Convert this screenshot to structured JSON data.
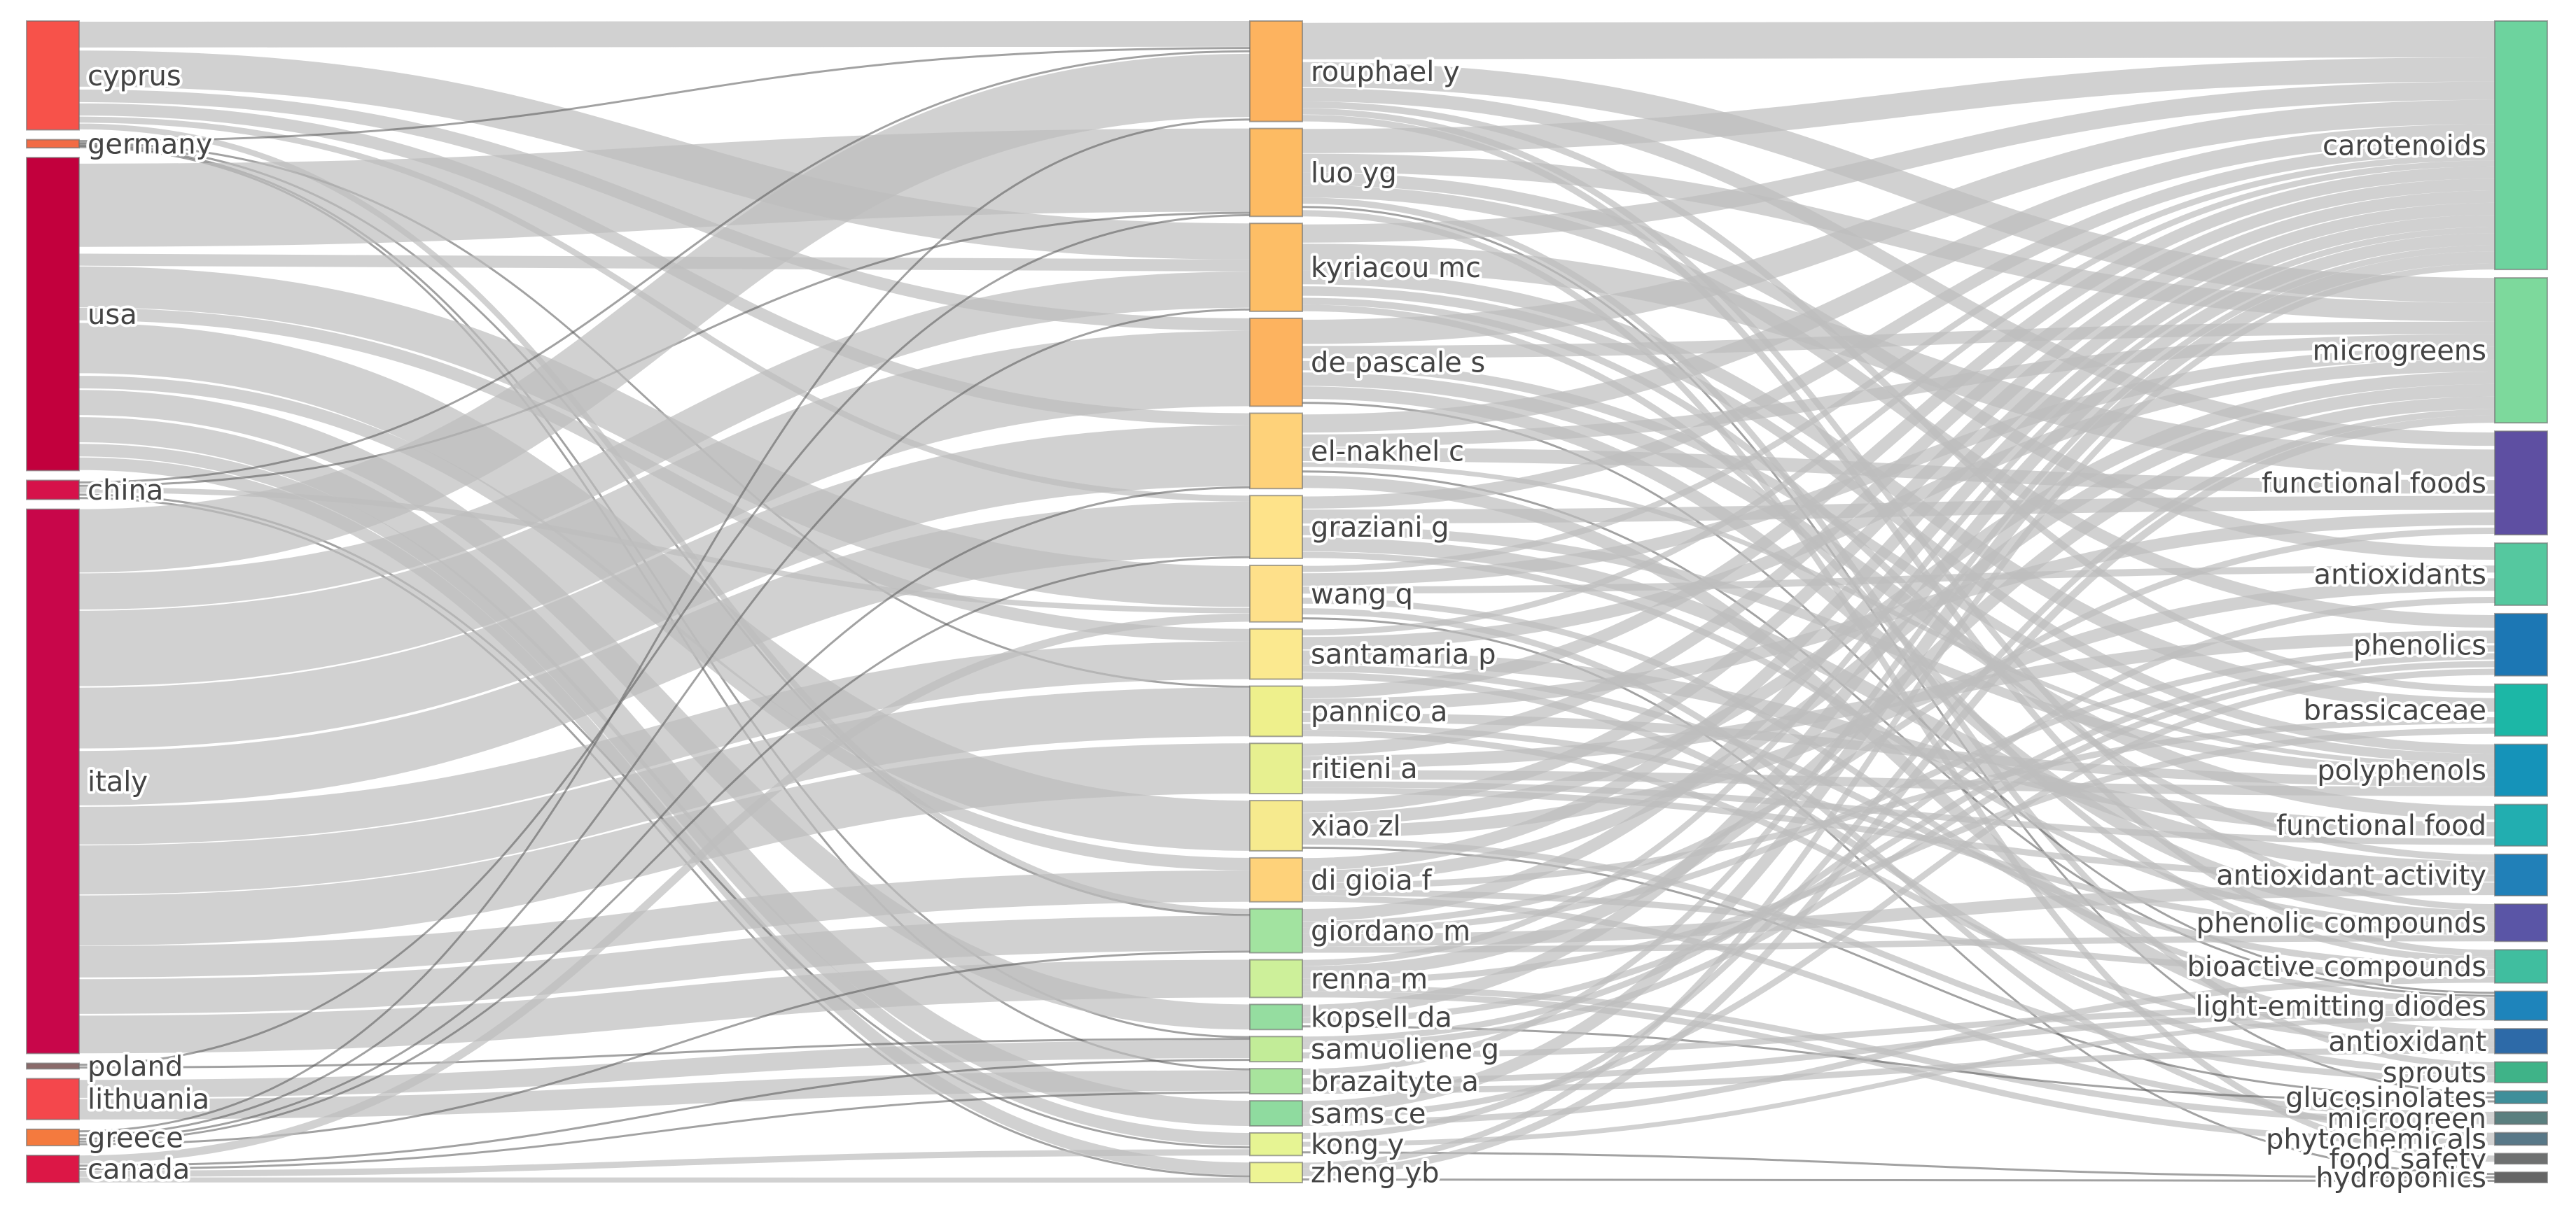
{
  "chart_data": {
    "type": "sankey",
    "columns": [
      {
        "name": "countries",
        "nodes": [
          {
            "id": "cyprus",
            "label": "cyprus",
            "color": "#f7524a",
            "weight": 8
          },
          {
            "id": "germany",
            "label": "germany",
            "color": "#f26b45",
            "weight": 0.6
          },
          {
            "id": "usa",
            "label": "usa",
            "color": "#c2003d",
            "weight": 23
          },
          {
            "id": "china",
            "label": "china",
            "color": "#d6124a",
            "weight": 1.4
          },
          {
            "id": "italy",
            "label": "italy",
            "color": "#c8064a",
            "weight": 40
          },
          {
            "id": "poland",
            "label": "poland",
            "color": "#8a6a6a",
            "weight": 0.4
          },
          {
            "id": "lithuania",
            "label": "lithuania",
            "color": "#f4474c",
            "weight": 3
          },
          {
            "id": "greece",
            "label": "greece",
            "color": "#f47a3e",
            "weight": 1.2
          },
          {
            "id": "canada",
            "label": "canada",
            "color": "#dc1746",
            "weight": 2
          }
        ]
      },
      {
        "name": "authors",
        "nodes": [
          {
            "id": "rouphael",
            "label": "rouphael y",
            "color": "#fdb35f",
            "weight": 8
          },
          {
            "id": "luo",
            "label": "luo yg",
            "color": "#fdbb63",
            "weight": 7
          },
          {
            "id": "kyriacou",
            "label": "kyriacou mc",
            "color": "#fdbe66",
            "weight": 7
          },
          {
            "id": "depascale",
            "label": "de pascale s",
            "color": "#fdb35f",
            "weight": 7
          },
          {
            "id": "elnakhel",
            "label": "el-nakhel c",
            "color": "#fed27a",
            "weight": 6
          },
          {
            "id": "graziani",
            "label": "graziani g",
            "color": "#fee38a",
            "weight": 5
          },
          {
            "id": "wang",
            "label": "wang q",
            "color": "#fee08a",
            "weight": 4.5
          },
          {
            "id": "santamaria",
            "label": "santamaria p",
            "color": "#fbe98f",
            "weight": 4
          },
          {
            "id": "pannico",
            "label": "pannico a",
            "color": "#eef08c",
            "weight": 4
          },
          {
            "id": "ritieni",
            "label": "ritieni a",
            "color": "#e7f090",
            "weight": 4
          },
          {
            "id": "xiao",
            "label": "xiao zl",
            "color": "#f6ea8e",
            "weight": 4
          },
          {
            "id": "digioia",
            "label": "di gioia f",
            "color": "#fed27a",
            "weight": 3.5
          },
          {
            "id": "giordano",
            "label": "giordano m",
            "color": "#a2e3a0",
            "weight": 3.5
          },
          {
            "id": "renna",
            "label": "renna m",
            "color": "#cdf09a",
            "weight": 3
          },
          {
            "id": "kopsell",
            "label": "kopsell da",
            "color": "#95dda0",
            "weight": 2
          },
          {
            "id": "samuoliene",
            "label": "samuoliene g",
            "color": "#c2ec98",
            "weight": 2
          },
          {
            "id": "brazaityte",
            "label": "brazaityte a",
            "color": "#a8e49d",
            "weight": 2
          },
          {
            "id": "sams",
            "label": "sams ce",
            "color": "#8fdb9f",
            "weight": 2
          },
          {
            "id": "kong",
            "label": "kong y",
            "color": "#e6f493",
            "weight": 1.8
          },
          {
            "id": "zheng",
            "label": "zheng yb",
            "color": "#edf494",
            "weight": 1.6
          }
        ]
      },
      {
        "name": "keywords",
        "nodes": [
          {
            "id": "carotenoids",
            "label": "carotenoids",
            "color": "#6dd39e",
            "weight": 12
          },
          {
            "id": "microgreens",
            "label": "microgreens",
            "color": "#7dd99c",
            "weight": 7
          },
          {
            "id": "functional_foods",
            "label": "functional foods",
            "color": "#5e4fa2",
            "weight": 5
          },
          {
            "id": "antioxidants",
            "label": "antioxidants",
            "color": "#55c89f",
            "weight": 3
          },
          {
            "id": "phenolics",
            "label": "phenolics",
            "color": "#1c77b4",
            "weight": 3
          },
          {
            "id": "brassicaceae",
            "label": "brassicaceae",
            "color": "#1cb7a6",
            "weight": 2.5
          },
          {
            "id": "polyphenols",
            "label": "polyphenols",
            "color": "#1593b9",
            "weight": 2.5
          },
          {
            "id": "functional_food",
            "label": "functional food",
            "color": "#22aeb0",
            "weight": 2
          },
          {
            "id": "antioxidant_activity",
            "label": "antioxidant activity",
            "color": "#2180b8",
            "weight": 2
          },
          {
            "id": "phenolic_compounds",
            "label": "phenolic compounds",
            "color": "#5a55a6",
            "weight": 1.8
          },
          {
            "id": "bioactive_compounds",
            "label": "bioactive compounds",
            "color": "#40be9f",
            "weight": 1.6
          },
          {
            "id": "leds",
            "label": "light-emitting diodes",
            "color": "#1e84bb",
            "weight": 1.4
          },
          {
            "id": "antioxidant",
            "label": "antioxidant",
            "color": "#2d6aa8",
            "weight": 1.2
          },
          {
            "id": "sprouts",
            "label": "sprouts",
            "color": "#3fb388",
            "weight": 1
          },
          {
            "id": "glucosinolates",
            "label": "glucosinolates",
            "color": "#3f8f9a",
            "weight": 0.6
          },
          {
            "id": "microgreen",
            "label": "microgreen",
            "color": "#5a7f7f",
            "weight": 0.6
          },
          {
            "id": "phytochemicals",
            "label": "phytochemicals",
            "color": "#587888",
            "weight": 0.6
          },
          {
            "id": "food_safety",
            "label": "food safety",
            "color": "#6e7070",
            "weight": 0.5
          },
          {
            "id": "hydroponics",
            "label": "hydroponics",
            "color": "#666666",
            "weight": 0.5
          }
        ]
      }
    ],
    "links_country_author": [
      [
        "cyprus",
        "rouphael",
        2
      ],
      [
        "cyprus",
        "kyriacou",
        3
      ],
      [
        "cyprus",
        "depascale",
        1
      ],
      [
        "cyprus",
        "elnakhel",
        1
      ],
      [
        "cyprus",
        "graziani",
        0.5
      ],
      [
        "cyprus",
        "giordano",
        0.5
      ],
      [
        "germany",
        "rouphael",
        0.2
      ],
      [
        "germany",
        "pannico",
        0.1
      ],
      [
        "germany",
        "giordano",
        0.1
      ],
      [
        "germany",
        "samuoliene",
        0.1
      ],
      [
        "germany",
        "brazaityte",
        0.1
      ],
      [
        "usa",
        "luo",
        7
      ],
      [
        "usa",
        "xiao",
        4
      ],
      [
        "usa",
        "kopsell",
        2
      ],
      [
        "usa",
        "sams",
        2
      ],
      [
        "usa",
        "digioia",
        1
      ],
      [
        "usa",
        "kyriacou",
        1
      ],
      [
        "usa",
        "wang",
        3
      ],
      [
        "usa",
        "zheng",
        1
      ],
      [
        "usa",
        "kong",
        1
      ],
      [
        "usa",
        "santamaria",
        1
      ],
      [
        "china",
        "rouphael",
        0.3
      ],
      [
        "china",
        "luo",
        0.2
      ],
      [
        "china",
        "wang",
        0.4
      ],
      [
        "china",
        "kong",
        0.3
      ],
      [
        "china",
        "zheng",
        0.2
      ],
      [
        "italy",
        "rouphael",
        5
      ],
      [
        "italy",
        "depascale",
        6
      ],
      [
        "italy",
        "elnakhel",
        5
      ],
      [
        "italy",
        "graziani",
        4.5
      ],
      [
        "italy",
        "santamaria",
        3
      ],
      [
        "italy",
        "pannico",
        4
      ],
      [
        "italy",
        "ritieni",
        4
      ],
      [
        "italy",
        "digioia",
        2.5
      ],
      [
        "italy",
        "giordano",
        3
      ],
      [
        "italy",
        "renna",
        3
      ],
      [
        "italy",
        "kyriacou",
        3
      ],
      [
        "poland",
        "luo",
        0.2
      ],
      [
        "poland",
        "samuoliene",
        0.2
      ],
      [
        "lithuania",
        "samuoliene",
        1.5
      ],
      [
        "lithuania",
        "brazaityte",
        1.5
      ],
      [
        "greece",
        "rouphael",
        0.3
      ],
      [
        "greece",
        "kyriacou",
        0.3
      ],
      [
        "greece",
        "elnakhel",
        0.2
      ],
      [
        "greece",
        "giordano",
        0.2
      ],
      [
        "greece",
        "graziani",
        0.2
      ],
      [
        "canada",
        "kong",
        0.5
      ],
      [
        "canada",
        "zheng",
        0.4
      ],
      [
        "canada",
        "wang",
        0.6
      ],
      [
        "canada",
        "samuoliene",
        0.3
      ],
      [
        "canada",
        "brazaityte",
        0.2
      ]
    ],
    "links_author_keyword": [
      [
        "rouphael",
        "carotenoids",
        3
      ],
      [
        "rouphael",
        "microgreens",
        2
      ],
      [
        "rouphael",
        "functional_foods",
        1
      ],
      [
        "rouphael",
        "brassicaceae",
        0.5
      ],
      [
        "rouphael",
        "bioactive_compounds",
        0.5
      ],
      [
        "rouphael",
        "phenolic_compounds",
        0.5
      ],
      [
        "luo",
        "carotenoids",
        2
      ],
      [
        "luo",
        "microgreens",
        1.5
      ],
      [
        "luo",
        "phenolics",
        1
      ],
      [
        "luo",
        "antioxidants",
        1
      ],
      [
        "luo",
        "sprouts",
        0.5
      ],
      [
        "luo",
        "food_safety",
        0.5
      ],
      [
        "luo",
        "glucosinolates",
        0.5
      ],
      [
        "kyriacou",
        "functional_foods",
        2
      ],
      [
        "kyriacou",
        "carotenoids",
        1.5
      ],
      [
        "kyriacou",
        "brassicaceae",
        1
      ],
      [
        "kyriacou",
        "polyphenols",
        1
      ],
      [
        "kyriacou",
        "antioxidant_activity",
        0.5
      ],
      [
        "kyriacou",
        "bioactive_compounds",
        0.5
      ],
      [
        "depascale",
        "carotenoids",
        2
      ],
      [
        "depascale",
        "functional_food",
        1
      ],
      [
        "depascale",
        "polyphenols",
        1
      ],
      [
        "depascale",
        "microgreens",
        1
      ],
      [
        "depascale",
        "phenolic_compounds",
        1
      ],
      [
        "depascale",
        "leds",
        0.5
      ],
      [
        "elnakhel",
        "carotenoids",
        1.5
      ],
      [
        "elnakhel",
        "functional_foods",
        1
      ],
      [
        "elnakhel",
        "polyphenols",
        0.5
      ],
      [
        "elnakhel",
        "antioxidant",
        1
      ],
      [
        "elnakhel",
        "microgreens",
        1
      ],
      [
        "elnakhel",
        "leds",
        0.5
      ],
      [
        "graziani",
        "carotenoids",
        1
      ],
      [
        "graziani",
        "polyphenols",
        1
      ],
      [
        "graziani",
        "antioxidant_activity",
        1
      ],
      [
        "graziani",
        "functional_foods",
        1
      ],
      [
        "graziani",
        "phenolic_compounds",
        0.5
      ],
      [
        "wang",
        "microgreens",
        1
      ],
      [
        "wang",
        "leds",
        1
      ],
      [
        "wang",
        "phytochemicals",
        0.5
      ],
      [
        "wang",
        "antioxidants",
        0.5
      ],
      [
        "wang",
        "hydroponics",
        0.5
      ],
      [
        "wang",
        "carotenoids",
        0.5
      ],
      [
        "santamaria",
        "microgreens",
        1
      ],
      [
        "santamaria",
        "functional_food",
        1
      ],
      [
        "santamaria",
        "bioactive_compounds",
        0.5
      ],
      [
        "santamaria",
        "carotenoids",
        0.5
      ],
      [
        "santamaria",
        "sprouts",
        0.5
      ],
      [
        "pannico",
        "carotenoids",
        1
      ],
      [
        "pannico",
        "polyphenols",
        1
      ],
      [
        "pannico",
        "antioxidant",
        0.5
      ],
      [
        "pannico",
        "functional_foods",
        1
      ],
      [
        "pannico",
        "phenolic_compounds",
        0.5
      ],
      [
        "ritieni",
        "carotenoids",
        1
      ],
      [
        "ritieni",
        "polyphenols",
        1
      ],
      [
        "ritieni",
        "phenolics",
        1
      ],
      [
        "ritieni",
        "antioxidant_activity",
        0.5
      ],
      [
        "ritieni",
        "functional_food",
        0.5
      ],
      [
        "xiao",
        "microgreens",
        1
      ],
      [
        "xiao",
        "carotenoids",
        1
      ],
      [
        "xiao",
        "antioxidants",
        1
      ],
      [
        "xiao",
        "glucosinolates",
        0.5
      ],
      [
        "xiao",
        "sprouts",
        0.5
      ],
      [
        "digioia",
        "microgreens",
        1
      ],
      [
        "digioia",
        "carotenoids",
        1
      ],
      [
        "digioia",
        "microgreen",
        0.5
      ],
      [
        "digioia",
        "bioactive_compounds",
        0.5
      ],
      [
        "digioia",
        "brassicaceae",
        0.5
      ],
      [
        "giordano",
        "carotenoids",
        1
      ],
      [
        "giordano",
        "antioxidant_activity",
        1
      ],
      [
        "giordano",
        "phenolic_compounds",
        0.5
      ],
      [
        "giordano",
        "functional_foods",
        0.5
      ],
      [
        "giordano",
        "phenolics",
        0.5
      ],
      [
        "renna",
        "microgreens",
        1
      ],
      [
        "renna",
        "carotenoids",
        0.5
      ],
      [
        "renna",
        "phytochemicals",
        0.5
      ],
      [
        "renna",
        "brassicaceae",
        0.5
      ],
      [
        "renna",
        "microgreen",
        0.5
      ],
      [
        "kopsell",
        "carotenoids",
        1
      ],
      [
        "kopsell",
        "glucosinolates",
        0.5
      ],
      [
        "kopsell",
        "phenolics",
        0.5
      ],
      [
        "samuoliene",
        "leds",
        1
      ],
      [
        "samuoliene",
        "antioxidants",
        0.5
      ],
      [
        "samuoliene",
        "phenolics",
        0.5
      ],
      [
        "brazaityte",
        "leds",
        1
      ],
      [
        "brazaityte",
        "carotenoids",
        0.5
      ],
      [
        "brazaityte",
        "antioxidant",
        0.5
      ],
      [
        "sams",
        "carotenoids",
        1
      ],
      [
        "sams",
        "bioactive_compounds",
        0.5
      ],
      [
        "sams",
        "phenolics",
        0.5
      ],
      [
        "kong",
        "leds",
        0.8
      ],
      [
        "kong",
        "microgreens",
        0.5
      ],
      [
        "kong",
        "hydroponics",
        0.5
      ],
      [
        "zheng",
        "microgreens",
        0.6
      ],
      [
        "zheng",
        "hydroponics",
        0.5
      ],
      [
        "zheng",
        "carotenoids",
        0.5
      ]
    ]
  }
}
